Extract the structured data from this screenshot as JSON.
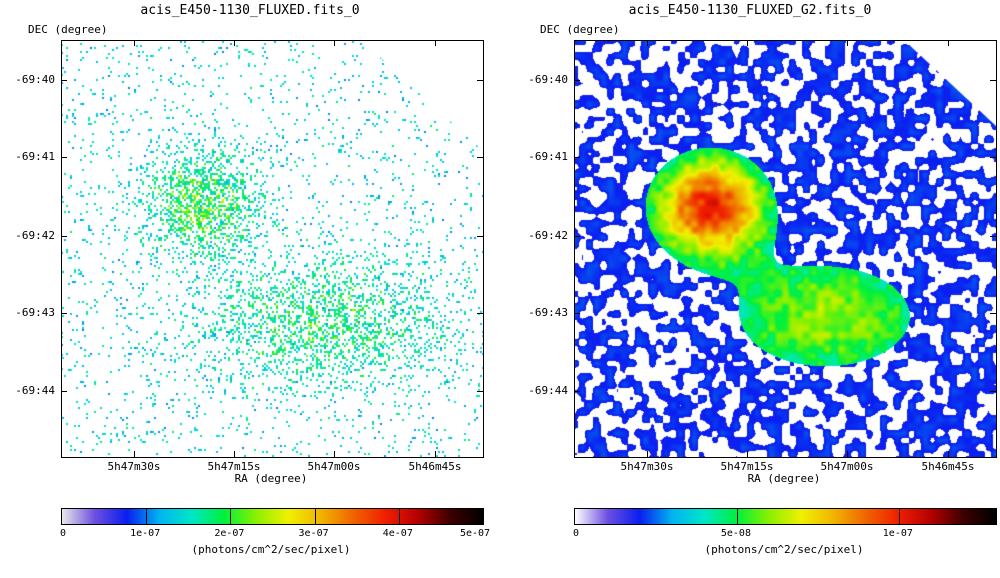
{
  "chart_data": [
    {
      "type": "heatmap",
      "title": "acis_E450-1130_FLUXED.fits_0",
      "ylabel": "DEC (degree)",
      "xlabel": "RA (degree)",
      "y_ticks": [
        "-69:40",
        "-69:41",
        "-69:42",
        "-69:43",
        "-69:44"
      ],
      "x_ticks": [
        "5h47m30s",
        "5h47m15s",
        "5h47m00s",
        "5h46m45s"
      ],
      "colorbar": {
        "ticks": [
          "0",
          "1e-07",
          "2e-07",
          "3e-07",
          "4e-07",
          "5e-07"
        ],
        "range": [
          0,
          5e-07
        ],
        "units": "(photons/cm^2/sec/pixel)"
      },
      "style": "sparse",
      "colormap": [
        "#e8e8e8",
        "#6e50e0",
        "#0a1ef0",
        "#00b4f0",
        "#00e6c8",
        "#00f03c",
        "#8cf000",
        "#f0f000",
        "#f0b400",
        "#f06400",
        "#f01e00",
        "#b40000",
        "#3c0000",
        "#000000"
      ],
      "regions": [
        {
          "label": "upper-left diffuse emission",
          "ra": "5h47m18s",
          "dec": "-69:41.5",
          "relative_intensity": 1.0
        },
        {
          "label": "lower-right diffuse emission",
          "ra": "5h47m00s",
          "dec": "-69:42.9",
          "relative_intensity": 0.65
        }
      ]
    },
    {
      "type": "heatmap",
      "title": "acis_E450-1130_FLUXED_G2.fits_0",
      "ylabel": "DEC (degree)",
      "xlabel": "RA (degree)",
      "y_ticks": [
        "-69:40",
        "-69:41",
        "-69:42",
        "-69:43",
        "-69:44"
      ],
      "x_ticks": [
        "5h47m30s",
        "5h47m15s",
        "5h47m00s",
        "5h46m45s"
      ],
      "colorbar": {
        "ticks": [
          "0",
          "5e-08",
          "1e-07"
        ],
        "range": [
          0,
          1.3e-07
        ],
        "units": "(photons/cm^2/sec/pixel)"
      },
      "style": "smoothed",
      "colormap": [
        "#ffffff",
        "#6e50e0",
        "#0a1ef0",
        "#00b4f0",
        "#00e6c8",
        "#00f03c",
        "#8cf000",
        "#f0f000",
        "#f0b400",
        "#f06400",
        "#f01e00",
        "#b40000",
        "#3c0000",
        "#000000"
      ],
      "regions": [
        {
          "label": "upper-left diffuse emission",
          "ra": "5h47m18s",
          "dec": "-69:41.5",
          "relative_intensity": 1.0
        },
        {
          "label": "lower-right diffuse emission",
          "ra": "5h47m00s",
          "dec": "-69:42.9",
          "relative_intensity": 0.45
        }
      ]
    }
  ]
}
